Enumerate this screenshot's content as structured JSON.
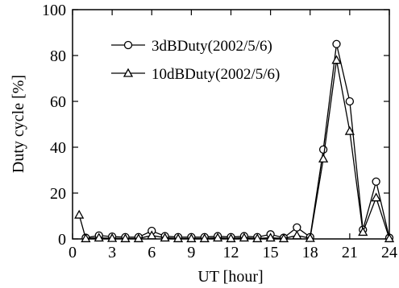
{
  "chart_data": {
    "type": "line",
    "xlabel": "UT [hour]",
    "ylabel": "Duty cycle [%]",
    "xlim": [
      0,
      24
    ],
    "ylim": [
      0,
      100
    ],
    "xticks": [
      0,
      3,
      6,
      9,
      12,
      15,
      18,
      21,
      24
    ],
    "yticks": [
      0,
      20,
      40,
      60,
      80,
      100
    ],
    "grid": false,
    "legend_position": "top-left",
    "x": [
      0,
      0.5,
      1,
      2,
      3,
      4,
      5,
      6,
      7,
      8,
      9,
      10,
      11,
      12,
      13,
      14,
      15,
      16,
      17,
      18,
      19,
      20,
      21,
      22,
      23,
      24
    ],
    "series": [
      {
        "name": "3dBDuty(2002/5/6)",
        "marker": "circle",
        "values": [
          null,
          null,
          0.5,
          1.5,
          1,
          0.8,
          0.8,
          3.5,
          1.2,
          0.8,
          0.8,
          0.8,
          1.2,
          0.8,
          1.2,
          0.8,
          2,
          0.5,
          5,
          0.8,
          39,
          85,
          60,
          4,
          25,
          0.5
        ]
      },
      {
        "name": "10dBDuty(2002/5/6)",
        "marker": "triangle",
        "values": [
          null,
          10.5,
          0.2,
          0.5,
          0.3,
          0.2,
          0.2,
          1.5,
          0.5,
          0.2,
          0.2,
          0.2,
          0.5,
          0.2,
          0.5,
          0.2,
          0.5,
          0.2,
          1.5,
          0.3,
          35,
          78,
          47,
          3,
          18,
          0.2
        ]
      }
    ]
  }
}
